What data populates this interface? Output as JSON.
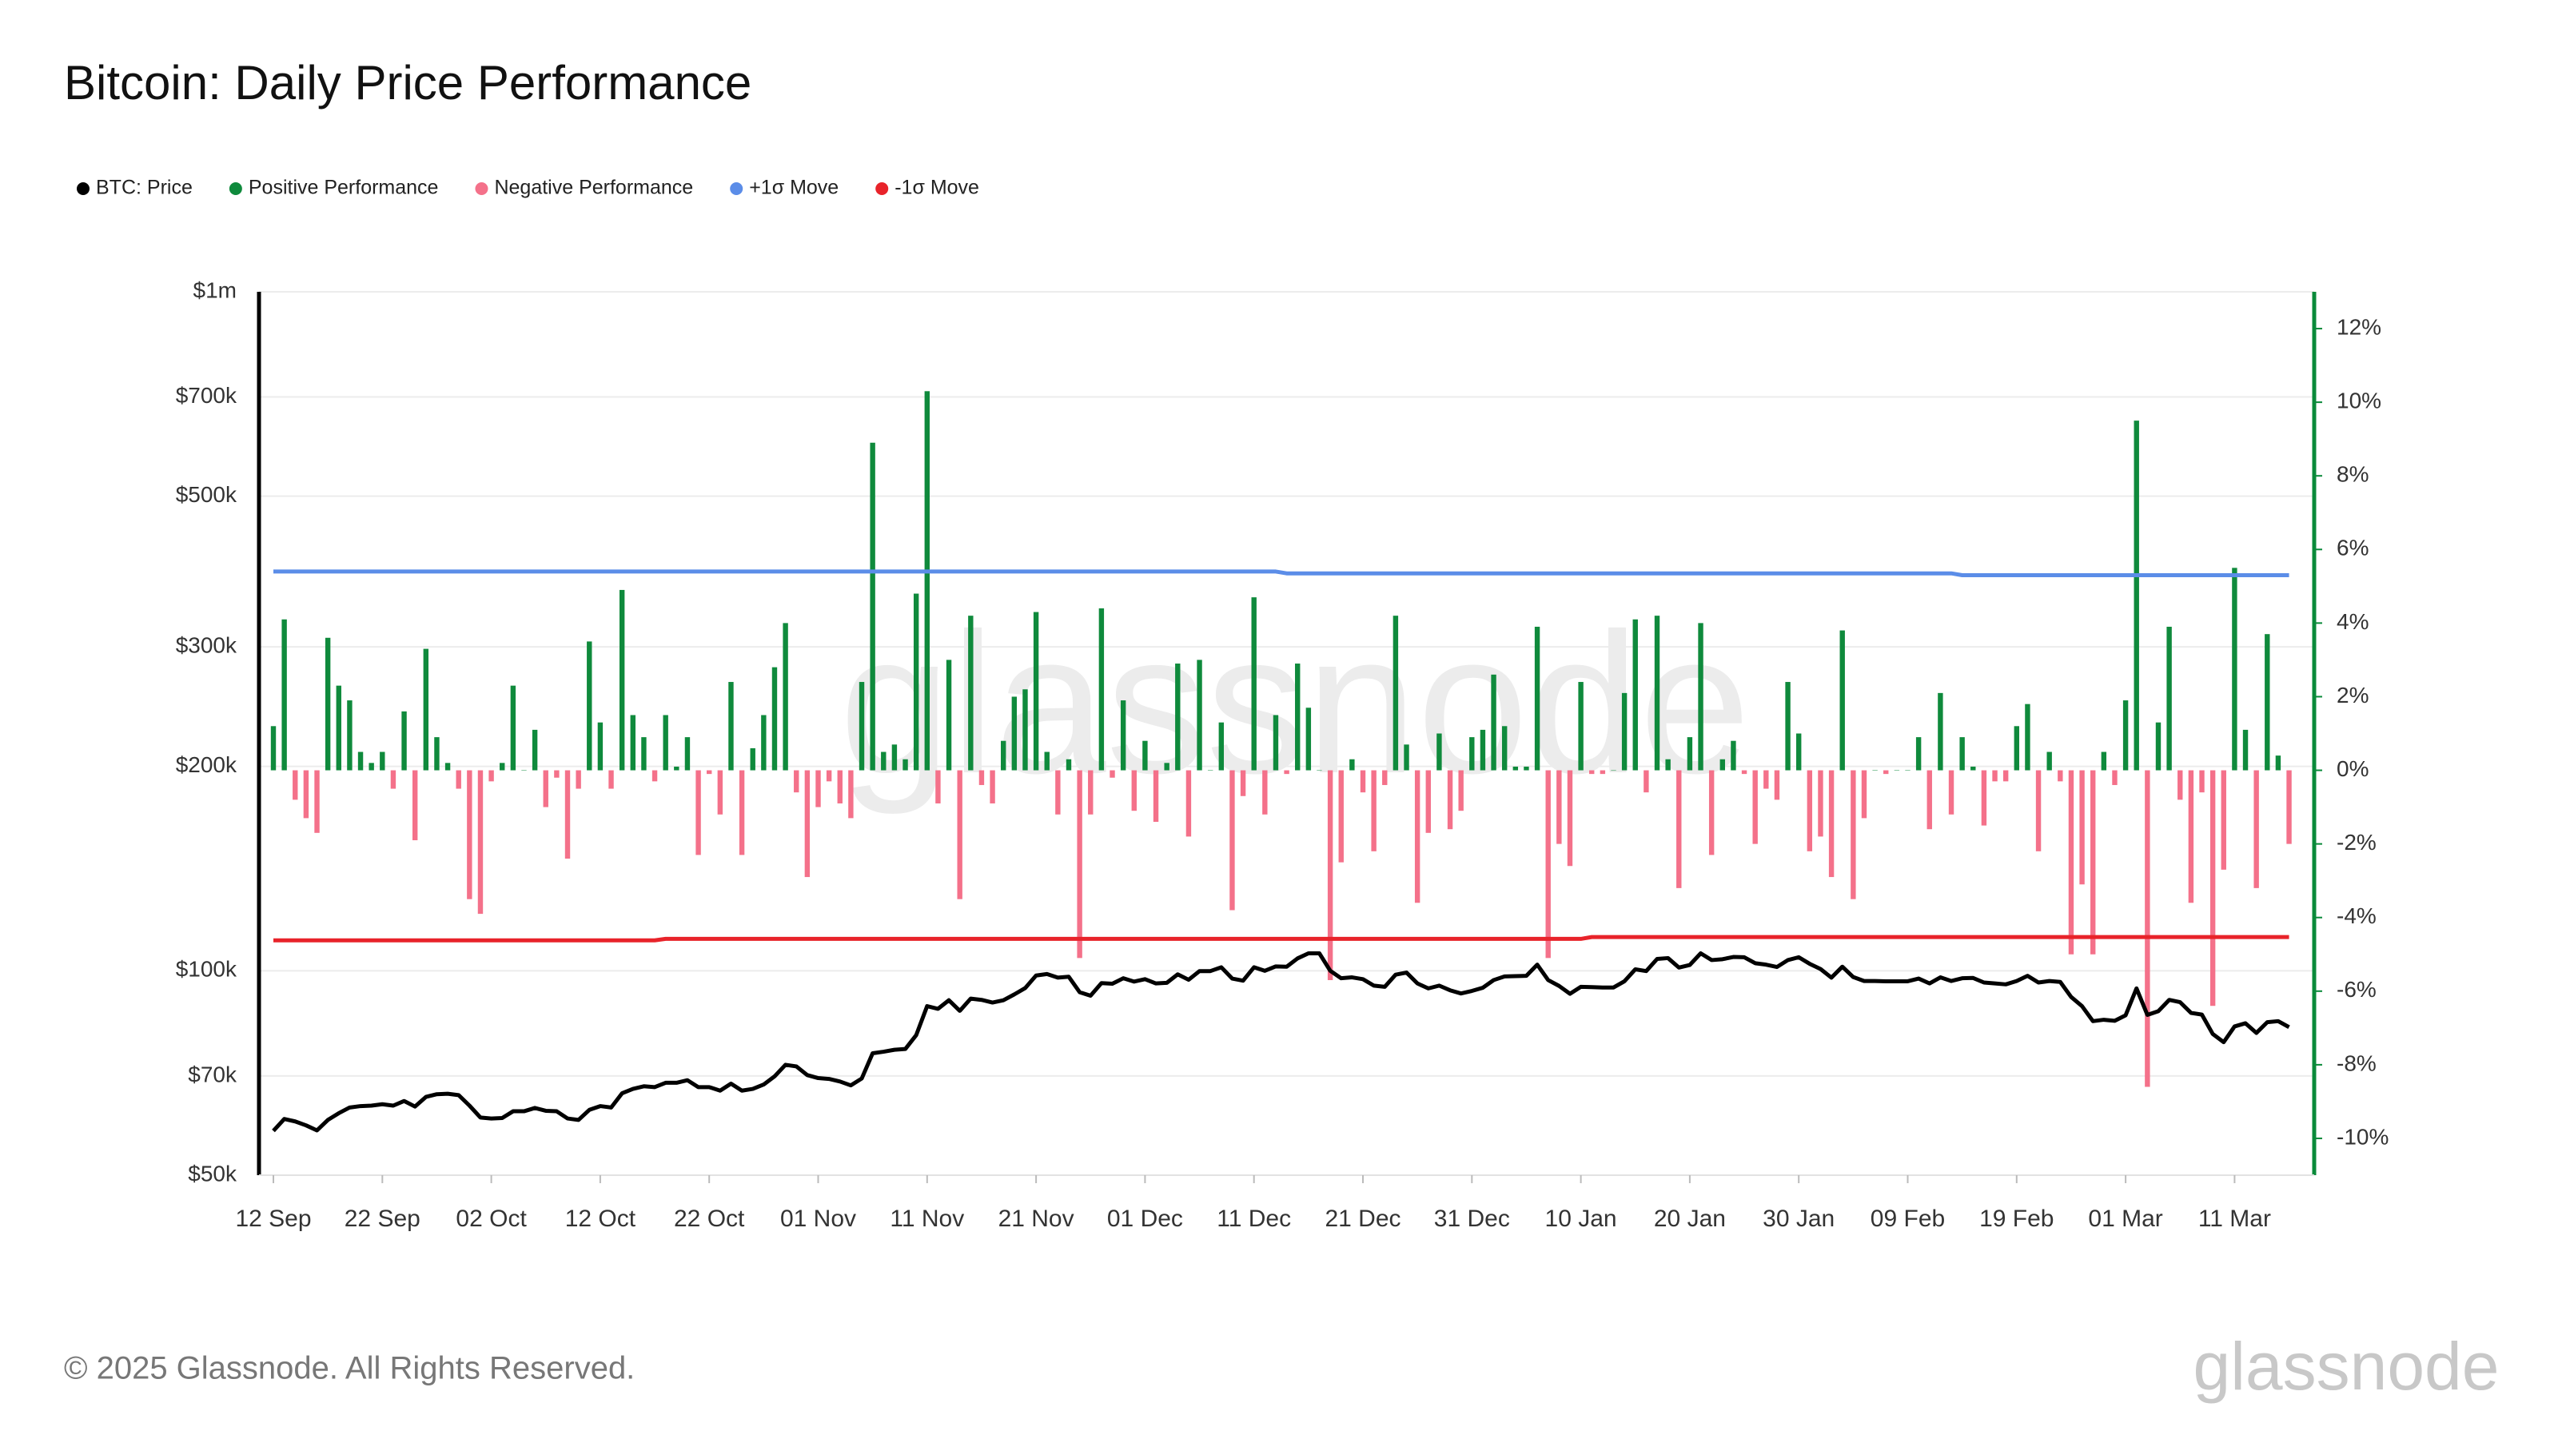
{
  "chart_data": {
    "type": "line",
    "title": "Bitcoin: Daily Price Performance",
    "footer": "© 2025 Glassnode. All Rights Reserved.",
    "watermark": "glassnode",
    "legend": "top-left",
    "grid": true,
    "log_scale_y": true,
    "y2_axis_color": "#0a8a3a",
    "categories": [
      "12 Sep",
      null,
      null,
      null,
      null,
      null,
      null,
      null,
      null,
      null,
      "22 Sep",
      null,
      null,
      null,
      null,
      null,
      null,
      null,
      null,
      null,
      "02 Oct",
      null,
      null,
      null,
      null,
      null,
      null,
      null,
      null,
      null,
      "12 Oct",
      null,
      null,
      null,
      null,
      null,
      null,
      null,
      null,
      null,
      "22 Oct",
      null,
      null,
      null,
      null,
      null,
      null,
      null,
      null,
      null,
      "01 Nov",
      null,
      null,
      null,
      null,
      null,
      null,
      null,
      null,
      null,
      "11 Nov",
      null,
      null,
      null,
      null,
      null,
      null,
      null,
      null,
      null,
      "21 Nov",
      null,
      null,
      null,
      null,
      null,
      null,
      null,
      null,
      null,
      "01 Dec",
      null,
      null,
      null,
      null,
      null,
      null,
      null,
      null,
      null,
      "11 Dec",
      null,
      null,
      null,
      null,
      null,
      null,
      null,
      null,
      null,
      "21 Dec",
      null,
      null,
      null,
      null,
      null,
      null,
      null,
      null,
      null,
      "31 Dec",
      null,
      null,
      null,
      null,
      null,
      null,
      null,
      null,
      null,
      "10 Jan",
      null,
      null,
      null,
      null,
      null,
      null,
      null,
      null,
      null,
      "20 Jan",
      null,
      null,
      null,
      null,
      null,
      null,
      null,
      null,
      null,
      "30 Jan",
      null,
      null,
      null,
      null,
      null,
      null,
      null,
      null,
      null,
      "09 Feb",
      null,
      null,
      null,
      null,
      null,
      null,
      null,
      null,
      null,
      "19 Feb",
      null,
      null,
      null,
      null,
      null,
      null,
      null,
      null,
      null,
      "01 Mar",
      null,
      null,
      null,
      null,
      null,
      null,
      null,
      null,
      null,
      "11 Mar",
      null,
      null,
      null,
      null,
      null
    ],
    "ylim": [
      50000,
      1000000
    ],
    "yticks": [
      {
        "value": 50000,
        "label": "$50k"
      },
      {
        "value": 70000,
        "label": "$70k"
      },
      {
        "value": 100000,
        "label": "$100k"
      },
      {
        "value": 200000,
        "label": "$200k"
      },
      {
        "value": 300000,
        "label": "$300k"
      },
      {
        "value": 500000,
        "label": "$500k"
      },
      {
        "value": 700000,
        "label": "$700k"
      },
      {
        "value": 1000000,
        "label": "$1m"
      }
    ],
    "y2lim": [
      -11,
      13
    ],
    "y2ticks": [
      {
        "value": -10,
        "label": "-10%"
      },
      {
        "value": -8,
        "label": "-8%"
      },
      {
        "value": -6,
        "label": "-6%"
      },
      {
        "value": -4,
        "label": "-4%"
      },
      {
        "value": -2,
        "label": "-2%"
      },
      {
        "value": 0,
        "label": "0%"
      },
      {
        "value": 2,
        "label": "2%"
      },
      {
        "value": 4,
        "label": "4%"
      },
      {
        "value": 6,
        "label": "6%"
      },
      {
        "value": 8,
        "label": "8%"
      },
      {
        "value": 10,
        "label": "10%"
      },
      {
        "value": 12,
        "label": "12%"
      }
    ],
    "series": [
      {
        "name": "BTC: Price",
        "color": "#000000",
        "type": "line",
        "axis": "y",
        "values": [
          58100,
          60500,
          60000,
          59200,
          58200,
          60300,
          61700,
          62900,
          63200,
          63300,
          63600,
          63300,
          64300,
          63100,
          65200,
          65800,
          65900,
          65600,
          63300,
          60800,
          60600,
          60700,
          62100,
          62100,
          62800,
          62200,
          62100,
          60600,
          60300,
          62400,
          63200,
          62900,
          66000,
          67000,
          67600,
          67400,
          68400,
          68400,
          69000,
          67400,
          67400,
          66600,
          68200,
          66600,
          67000,
          68000,
          69900,
          72700,
          72300,
          70200,
          69500,
          69300,
          68700,
          67800,
          69400,
          75600,
          76000,
          76500,
          76700,
          80400,
          88700,
          87900,
          90500,
          87300,
          91000,
          90600,
          89800,
          90500,
          92300,
          94300,
          98400,
          98900,
          97700,
          98000,
          93000,
          91900,
          95900,
          95700,
          97500,
          96400,
          97200,
          95800,
          96000,
          98800,
          97000,
          99900,
          99900,
          101200,
          97400,
          96700,
          101200,
          100000,
          101500,
          101400,
          104300,
          106100,
          106100,
          100000,
          97500,
          97800,
          97200,
          95100,
          94700,
          98700,
          99400,
          95800,
          94200,
          95100,
          93600,
          92600,
          93400,
          94400,
          96900,
          98100,
          98200,
          98300,
          102100,
          96900,
          95000,
          92500,
          94700,
          94600,
          94500,
          94500,
          96500,
          100500,
          99900,
          104100,
          104400,
          101100,
          102000,
          106100,
          103700,
          104000,
          104800,
          104700,
          102600,
          102100,
          101300,
          103700,
          104700,
          102400,
          100600,
          97700,
          101400,
          97900,
          96600,
          96600,
          96500,
          96500,
          96500,
          97400,
          95800,
          97800,
          96600,
          97500,
          97600,
          96100,
          95800,
          95500,
          96600,
          98300,
          96100,
          96600,
          96300,
          91500,
          88700,
          84300,
          84700,
          84400,
          86000,
          94200,
          86100,
          87200,
          90600,
          89900,
          86700,
          86200,
          80700,
          78500,
          82800,
          83700,
          81000,
          84000,
          84300,
          82600
        ]
      },
      {
        "name": "Positive Performance",
        "color": "#0f8a3c",
        "type": "bar",
        "axis": "y2",
        "values": [
          1.2,
          4.1,
          null,
          null,
          null,
          3.6,
          2.3,
          1.9,
          0.5,
          0.2,
          0.5,
          null,
          1.6,
          null,
          3.3,
          0.9,
          0.2,
          null,
          null,
          null,
          null,
          0.2,
          2.3,
          0.0,
          1.1,
          null,
          null,
          null,
          null,
          3.5,
          1.3,
          null,
          4.9,
          1.5,
          0.9,
          null,
          1.5,
          0.1,
          0.9,
          null,
          null,
          null,
          2.4,
          null,
          0.6,
          1.5,
          2.8,
          4.0,
          null,
          null,
          null,
          null,
          null,
          null,
          2.4,
          8.9,
          0.5,
          0.7,
          0.3,
          4.8,
          10.3,
          null,
          3.0,
          null,
          4.2,
          null,
          null,
          0.8,
          2.0,
          2.2,
          4.3,
          0.5,
          null,
          0.3,
          null,
          null,
          4.4,
          null,
          1.9,
          null,
          0.8,
          null,
          0.2,
          2.9,
          null,
          3.0,
          0.0,
          1.3,
          null,
          null,
          4.7,
          null,
          1.5,
          null,
          2.9,
          1.7,
          0.0,
          null,
          null,
          0.3,
          null,
          null,
          null,
          4.2,
          0.7,
          null,
          null,
          1.0,
          null,
          null,
          0.9,
          1.1,
          2.6,
          1.2,
          0.1,
          0.1,
          3.9,
          null,
          null,
          null,
          2.4,
          null,
          null,
          0.0,
          2.1,
          4.1,
          null,
          4.2,
          0.3,
          null,
          0.9,
          4.0,
          null,
          0.3,
          0.8,
          null,
          null,
          null,
          null,
          2.4,
          1.0,
          null,
          null,
          null,
          3.8,
          null,
          null,
          0.0,
          null,
          0.0,
          0.0,
          0.9,
          null,
          2.1,
          null,
          0.9,
          0.1,
          null,
          null,
          null,
          1.2,
          1.8,
          null,
          0.5,
          null,
          null,
          null,
          null,
          0.5,
          null,
          1.9,
          9.5,
          null,
          1.3,
          3.9,
          null,
          null,
          null,
          null,
          null,
          5.5,
          1.1,
          null,
          3.7,
          0.4,
          null
        ]
      },
      {
        "name": "Negative Performance",
        "color": "#f4718a",
        "type": "bar",
        "axis": "y2",
        "values": [
          null,
          null,
          -0.8,
          -1.3,
          -1.7,
          null,
          null,
          null,
          null,
          null,
          null,
          -0.5,
          null,
          -1.9,
          null,
          null,
          null,
          -0.5,
          -3.5,
          -3.9,
          -0.3,
          null,
          null,
          null,
          null,
          -1.0,
          -0.2,
          -2.4,
          -0.5,
          null,
          null,
          -0.5,
          null,
          null,
          null,
          -0.3,
          null,
          null,
          null,
          -2.3,
          -0.1,
          -1.2,
          null,
          -2.3,
          null,
          null,
          null,
          null,
          -0.6,
          -2.9,
          -1.0,
          -0.3,
          -0.9,
          -1.3,
          null,
          null,
          null,
          null,
          null,
          null,
          null,
          -0.9,
          null,
          -3.5,
          null,
          -0.4,
          -0.9,
          null,
          null,
          null,
          null,
          null,
          -1.2,
          null,
          -5.1,
          -1.2,
          null,
          -0.2,
          null,
          -1.1,
          null,
          -1.4,
          null,
          null,
          -1.8,
          null,
          null,
          null,
          -3.8,
          -0.7,
          null,
          -1.2,
          null,
          -0.1,
          null,
          null,
          null,
          -5.7,
          -2.5,
          null,
          -0.6,
          -2.2,
          -0.4,
          null,
          null,
          -3.6,
          -1.7,
          null,
          -1.6,
          -1.1,
          null,
          null,
          null,
          null,
          null,
          null,
          null,
          -5.1,
          -2.0,
          -2.6,
          null,
          -0.1,
          -0.1,
          null,
          null,
          null,
          -0.6,
          null,
          null,
          -3.2,
          null,
          null,
          -2.3,
          null,
          null,
          -0.1,
          -2.0,
          -0.5,
          -0.8,
          null,
          null,
          -2.2,
          -1.8,
          -2.9,
          null,
          -3.5,
          -1.3,
          null,
          -0.1,
          null,
          null,
          null,
          -1.6,
          null,
          -1.2,
          null,
          null,
          -1.5,
          -0.3,
          -0.3,
          null,
          null,
          -2.2,
          null,
          -0.3,
          -5.0,
          -3.1,
          -5.0,
          null,
          -0.4,
          null,
          null,
          -8.6,
          null,
          null,
          -0.8,
          -3.6,
          -0.6,
          -6.4,
          -2.7,
          null,
          null,
          -3.2,
          null,
          null,
          -2.0
        ]
      },
      {
        "name": "+1σ Move",
        "color": "#5b8de8",
        "type": "line",
        "axis": "y2",
        "values": [
          5.4,
          5.4,
          5.4,
          5.4,
          5.4,
          5.4,
          5.4,
          5.4,
          5.4,
          5.4,
          5.4,
          5.4,
          5.4,
          5.4,
          5.4,
          5.4,
          5.4,
          5.4,
          5.4,
          5.4,
          5.4,
          5.4,
          5.4,
          5.4,
          5.4,
          5.4,
          5.4,
          5.4,
          5.4,
          5.4,
          5.4,
          5.4,
          5.4,
          5.4,
          5.4,
          5.4,
          5.4,
          5.4,
          5.4,
          5.4,
          5.4,
          5.4,
          5.4,
          5.4,
          5.4,
          5.4,
          5.4,
          5.4,
          5.4,
          5.4,
          5.4,
          5.4,
          5.4,
          5.4,
          5.4,
          5.4,
          5.4,
          5.4,
          5.4,
          5.4,
          5.4,
          5.4,
          5.4,
          5.4,
          5.4,
          5.4,
          5.4,
          5.4,
          5.4,
          5.4,
          5.4,
          5.4,
          5.4,
          5.4,
          5.4,
          5.4,
          5.4,
          5.4,
          5.4,
          5.4,
          5.4,
          5.4,
          5.4,
          5.4,
          5.4,
          5.4,
          5.4,
          5.4,
          5.4,
          5.4,
          5.4,
          5.4,
          5.4,
          5.35,
          5.35,
          5.35,
          5.35,
          5.35,
          5.35,
          5.35,
          5.35,
          5.35,
          5.35,
          5.35,
          5.35,
          5.35,
          5.35,
          5.35,
          5.35,
          5.35,
          5.35,
          5.35,
          5.35,
          5.35,
          5.35,
          5.35,
          5.35,
          5.35,
          5.35,
          5.35,
          5.35,
          5.35,
          5.35,
          5.35,
          5.35,
          5.35,
          5.35,
          5.35,
          5.35,
          5.35,
          5.35,
          5.35,
          5.35,
          5.35,
          5.35,
          5.35,
          5.35,
          5.35,
          5.35,
          5.35,
          5.35,
          5.35,
          5.35,
          5.35,
          5.35,
          5.35,
          5.35,
          5.35,
          5.35,
          5.35,
          5.35,
          5.35,
          5.35,
          5.35,
          5.35,
          5.3,
          5.3,
          5.3,
          5.3,
          5.3,
          5.3,
          5.3,
          5.3,
          5.3,
          5.3,
          5.3,
          5.3,
          5.3,
          5.3,
          5.3,
          5.3,
          5.3,
          5.3,
          5.3,
          5.3,
          5.3,
          5.3,
          5.3,
          5.3,
          5.3,
          5.3,
          5.3,
          5.3,
          5.3,
          5.3,
          5.3
        ]
      },
      {
        "name": "-1σ Move",
        "color": "#e8232a",
        "type": "line",
        "axis": "y2",
        "values": [
          -4.62,
          -4.62,
          -4.62,
          -4.62,
          -4.62,
          -4.62,
          -4.62,
          -4.62,
          -4.62,
          -4.62,
          -4.62,
          -4.62,
          -4.62,
          -4.62,
          -4.62,
          -4.62,
          -4.62,
          -4.62,
          -4.62,
          -4.62,
          -4.62,
          -4.62,
          -4.62,
          -4.62,
          -4.62,
          -4.62,
          -4.62,
          -4.62,
          -4.62,
          -4.62,
          -4.62,
          -4.62,
          -4.62,
          -4.62,
          -4.62,
          -4.62,
          -4.58,
          -4.58,
          -4.58,
          -4.58,
          -4.58,
          -4.58,
          -4.58,
          -4.58,
          -4.58,
          -4.58,
          -4.58,
          -4.58,
          -4.58,
          -4.58,
          -4.58,
          -4.58,
          -4.58,
          -4.58,
          -4.58,
          -4.58,
          -4.58,
          -4.58,
          -4.58,
          -4.58,
          -4.58,
          -4.58,
          -4.58,
          -4.58,
          -4.58,
          -4.58,
          -4.58,
          -4.58,
          -4.58,
          -4.58,
          -4.58,
          -4.58,
          -4.58,
          -4.58,
          -4.58,
          -4.58,
          -4.58,
          -4.58,
          -4.58,
          -4.58,
          -4.58,
          -4.58,
          -4.58,
          -4.58,
          -4.58,
          -4.58,
          -4.58,
          -4.58,
          -4.58,
          -4.58,
          -4.58,
          -4.58,
          -4.58,
          -4.58,
          -4.58,
          -4.58,
          -4.58,
          -4.58,
          -4.58,
          -4.58,
          -4.58,
          -4.58,
          -4.58,
          -4.58,
          -4.58,
          -4.58,
          -4.58,
          -4.58,
          -4.58,
          -4.58,
          -4.58,
          -4.58,
          -4.58,
          -4.58,
          -4.58,
          -4.58,
          -4.58,
          -4.58,
          -4.58,
          -4.58,
          -4.58,
          -4.53,
          -4.53,
          -4.53,
          -4.53,
          -4.53,
          -4.53,
          -4.53,
          -4.53,
          -4.53,
          -4.53,
          -4.53,
          -4.53,
          -4.53,
          -4.53,
          -4.53,
          -4.53,
          -4.53,
          -4.53,
          -4.53,
          -4.53,
          -4.53,
          -4.53,
          -4.53,
          -4.53,
          -4.53,
          -4.53,
          -4.53,
          -4.53,
          -4.53,
          -4.53,
          -4.53,
          -4.53,
          -4.53,
          -4.53,
          -4.53,
          -4.53,
          -4.53,
          -4.53,
          -4.53,
          -4.53,
          -4.53,
          -4.53,
          -4.53,
          -4.53,
          -4.53,
          -4.53,
          -4.53,
          -4.53,
          -4.53,
          -4.53,
          -4.53,
          -4.53,
          -4.53,
          -4.53,
          -4.53,
          -4.53,
          -4.53,
          -4.53,
          -4.53,
          -4.53,
          -4.53,
          -4.53,
          -4.53,
          -4.53,
          -4.53
        ]
      }
    ]
  }
}
